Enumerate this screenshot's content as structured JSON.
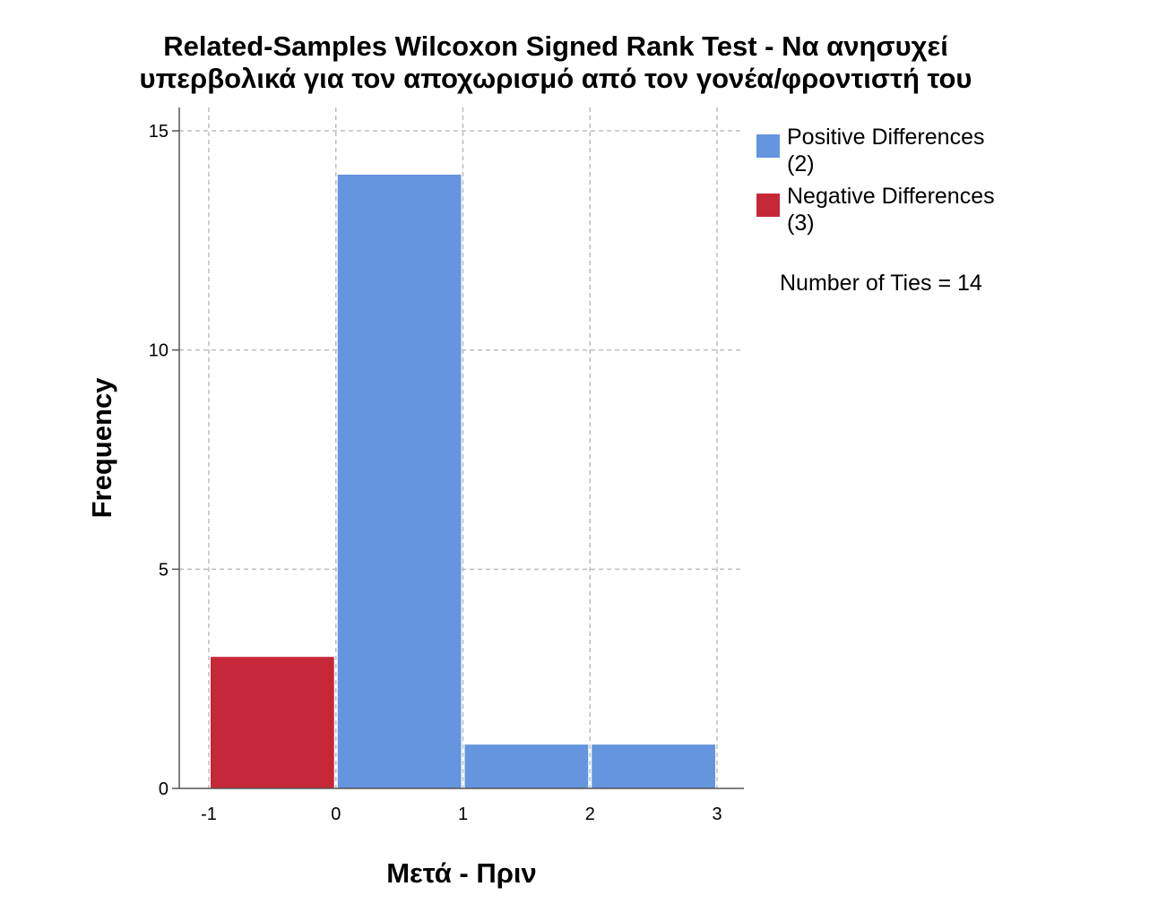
{
  "colors": {
    "positive": "#6495de",
    "negative": "#c6283a",
    "grid": "#bdbdbd",
    "axis": "#555555"
  },
  "chart_data": {
    "type": "bar",
    "title_lines": [
      "Related-Samples Wilcoxon Signed Rank Test - Να ανησυχεί",
      "υπερβολικά για τον αποχωρισμό από τον γονέα/φροντιστή του"
    ],
    "xlabel": "Μετά - Πριν",
    "ylabel": "Frequency",
    "xlim": [
      -1,
      3
    ],
    "ylim": [
      0,
      15
    ],
    "x_ticks": [
      "-1",
      "0",
      "1",
      "2",
      "3"
    ],
    "y_ticks": [
      "0",
      "5",
      "10",
      "15"
    ],
    "grid": true,
    "legend_placement": "right",
    "bins": [
      {
        "from": -1,
        "to": 0,
        "value": 3,
        "series": "negative"
      },
      {
        "from": 0,
        "to": 1,
        "value": 14,
        "series": "positive"
      },
      {
        "from": 1,
        "to": 2,
        "value": 1,
        "series": "positive"
      },
      {
        "from": 2,
        "to": 3,
        "value": 1,
        "series": "positive"
      }
    ],
    "legend": [
      {
        "key": "positive",
        "name": "Positive Differences",
        "count": "(2)"
      },
      {
        "key": "negative",
        "name": "Negative Differences",
        "count": "(3)"
      }
    ],
    "ties_note": "Number of Ties = 14"
  }
}
